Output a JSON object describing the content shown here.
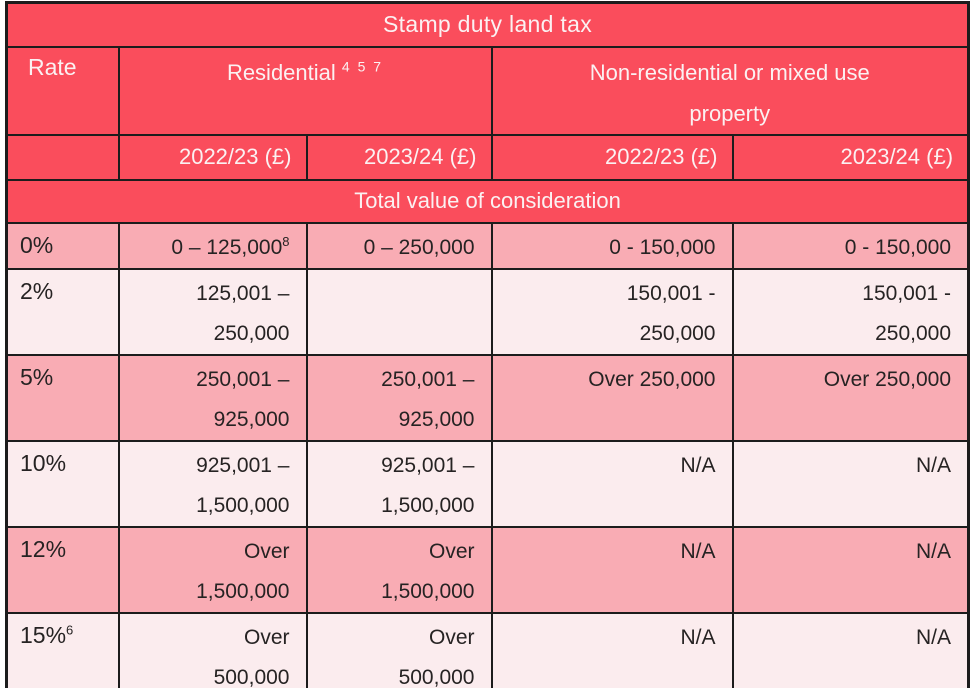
{
  "title": "Stamp duty land tax",
  "colors": {
    "header_red": "#FA4D5C",
    "row_pink_dark": "#F9ACB4",
    "row_pink_light": "#FBECEE",
    "border_black": "#1C1C1C",
    "header_text": "#FBF1F2",
    "body_text": "#262323"
  },
  "header": {
    "rate_label": "Rate",
    "residential_label": "Residential",
    "residential_superscript": "4 5 7",
    "nonresidential_label": "Non-residential or mixed use\nproperty",
    "year_columns": [
      "2022/23 (£)",
      "2023/24 (£)",
      "2022/23 (£)",
      "2023/24 (£)"
    ],
    "section_label": "Total value of consideration"
  },
  "rows": [
    {
      "rate": "0%",
      "rate_sup": "",
      "shade": "dark",
      "cells": [
        {
          "text": "0 – 125,000",
          "sup": "8"
        },
        {
          "text": "0 – 250,000",
          "sup": ""
        },
        {
          "text": "0 - 150,000",
          "sup": ""
        },
        {
          "text": "0 - 150,000",
          "sup": ""
        }
      ]
    },
    {
      "rate": "2%",
      "rate_sup": "",
      "shade": "light",
      "cells": [
        {
          "text": "125,001 –\n250,000",
          "sup": ""
        },
        {
          "text": "",
          "sup": ""
        },
        {
          "text": "150,001 -\n250,000",
          "sup": ""
        },
        {
          "text": "150,001 -\n250,000",
          "sup": ""
        }
      ]
    },
    {
      "rate": "5%",
      "rate_sup": "",
      "shade": "dark",
      "cells": [
        {
          "text": "250,001 –\n925,000",
          "sup": ""
        },
        {
          "text": "250,001 –\n925,000",
          "sup": ""
        },
        {
          "text": "Over 250,000",
          "sup": ""
        },
        {
          "text": "Over 250,000",
          "sup": ""
        }
      ]
    },
    {
      "rate": "10%",
      "rate_sup": "",
      "shade": "light",
      "cells": [
        {
          "text": "925,001 –\n1,500,000",
          "sup": ""
        },
        {
          "text": "925,001 –\n1,500,000",
          "sup": ""
        },
        {
          "text": "N/A",
          "sup": ""
        },
        {
          "text": "N/A",
          "sup": ""
        }
      ]
    },
    {
      "rate": "12%",
      "rate_sup": "",
      "shade": "dark",
      "cells": [
        {
          "text": "Over\n1,500,000",
          "sup": ""
        },
        {
          "text": "Over\n1,500,000",
          "sup": ""
        },
        {
          "text": "N/A",
          "sup": ""
        },
        {
          "text": "N/A",
          "sup": ""
        }
      ]
    },
    {
      "rate": "15%",
      "rate_sup": "6",
      "shade": "light",
      "cells": [
        {
          "text": "Over\n500,000",
          "sup": ""
        },
        {
          "text": "Over\n500,000",
          "sup": ""
        },
        {
          "text": "N/A",
          "sup": ""
        },
        {
          "text": "N/A",
          "sup": ""
        }
      ]
    }
  ]
}
